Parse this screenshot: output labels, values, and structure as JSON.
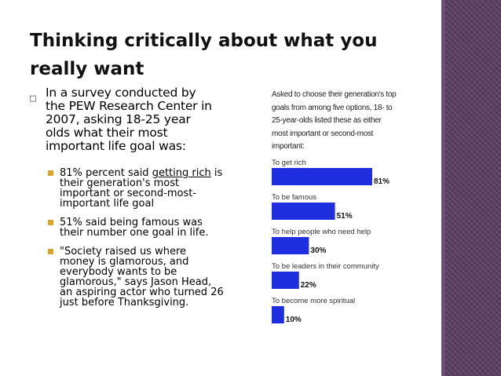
{
  "slide": {
    "title_line1": "Thinking critically about what you",
    "title_line2": "really want",
    "lead_text": "In a survey conducted by the PEW Research Center in 2007, asking 18-25 year olds what their most important life goal was:",
    "points": [
      {
        "pre": "81% percent said ",
        "underlined": "getting rich",
        "post": " is their generation's most important or second-most-important life goal"
      },
      {
        "pre": "51% said being famous was their number one goal in life.",
        "underlined": "",
        "post": ""
      },
      {
        "pre": " \"Society raised us where money is glamorous, and everybody wants to be glamorous,\" says Jason Head, an aspiring actor who turned 26 just before Thanksgiving.",
        "underlined": "",
        "post": ""
      }
    ],
    "colors": {
      "accent_bullet": "#e0a32a",
      "sidebar": "#5b3f63",
      "bar": "#1f2fe0"
    }
  },
  "chart_data": {
    "type": "bar",
    "orientation": "horizontal",
    "title": "Asked to choose their generation's top goals from among five options, 18- to 25-year-olds listed these as either most important or second-most important:",
    "categories": [
      "To get rich",
      "To be famous",
      "To help people who need help",
      "To be leaders in their community",
      "To become more spiritual"
    ],
    "values": [
      81,
      51,
      30,
      22,
      10
    ],
    "value_labels": [
      "81%",
      "51%",
      "30%",
      "22%",
      "10%"
    ],
    "xlim": [
      0,
      100
    ],
    "grid": false,
    "legend": "none"
  }
}
